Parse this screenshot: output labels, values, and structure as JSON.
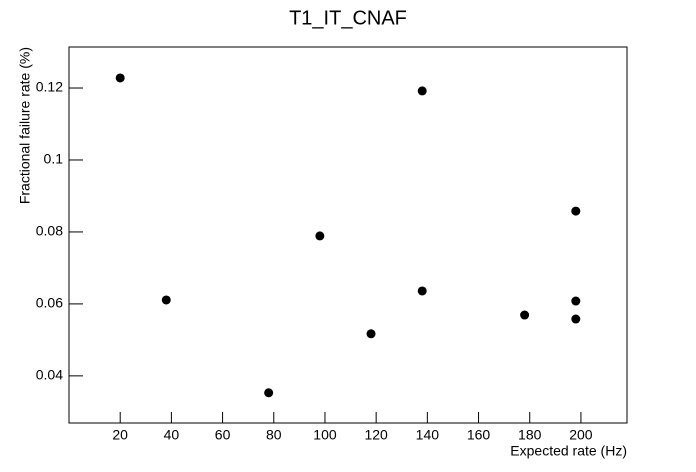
{
  "chart_data": {
    "type": "scatter",
    "title": "T1_IT_CNAF",
    "x_label": "Expected rate (Hz)",
    "y_label": "Fractional failure rate (%)",
    "x": [
      20,
      38,
      78,
      98,
      118,
      138,
      138,
      178,
      198,
      198,
      198
    ],
    "values": [
      0.1228,
      0.0611,
      0.0353,
      0.0789,
      0.0517,
      0.1192,
      0.0636,
      0.0569,
      0.0858,
      0.0608,
      0.0558
    ],
    "color": "#000000",
    "xlim": [
      0,
      218
    ],
    "ylim": [
      0.0269,
      0.1314
    ],
    "xticks": [
      20,
      40,
      60,
      80,
      100,
      120,
      140,
      160,
      180,
      200
    ],
    "yticks": [
      0.04,
      0.06,
      0.08,
      0.1,
      0.12
    ],
    "grid": false
  }
}
